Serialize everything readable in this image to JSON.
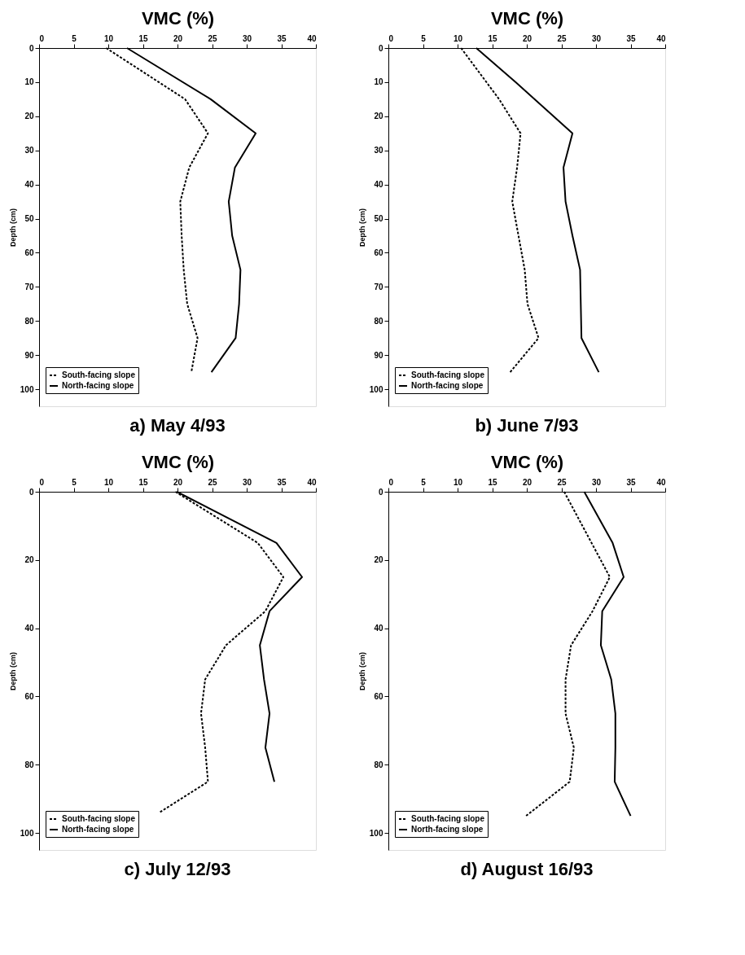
{
  "chart_data": [
    {
      "type": "line",
      "orientation": "horizontal",
      "title": "a) May 4/93",
      "xlabel": "VMC (%)",
      "ylabel": "Depth (cm)",
      "xlim": [
        0,
        40
      ],
      "xticks": [
        0,
        5,
        10,
        15,
        20,
        25,
        30,
        35,
        40
      ],
      "ylim": [
        105,
        0
      ],
      "yticks": [
        0,
        10,
        20,
        30,
        40,
        50,
        60,
        70,
        80,
        90,
        100
      ],
      "grid": false,
      "legend": "bottom left",
      "x": [
        0,
        15,
        25,
        35,
        45,
        55,
        65,
        75,
        85,
        95
      ],
      "series": [
        {
          "name": "South-facing slope",
          "color": "#000000",
          "line_style": "dashed",
          "values": [
            9.7,
            21.1,
            24.4,
            21.7,
            20.4,
            20.6,
            20.9,
            21.4,
            22.9,
            22.0
          ]
        },
        {
          "name": "North-facing slope",
          "color": "#000000",
          "line_style": "solid",
          "values": [
            12.7,
            24.8,
            31.3,
            28.3,
            27.4,
            27.9,
            29.1,
            28.9,
            28.4,
            24.9
          ]
        }
      ]
    },
    {
      "type": "line",
      "orientation": "horizontal",
      "title": "b) June 7/93",
      "xlabel": "VMC (%)",
      "ylabel": "Depth (cm)",
      "xlim": [
        0,
        40
      ],
      "xticks": [
        0,
        5,
        10,
        15,
        20,
        25,
        30,
        35,
        40
      ],
      "ylim": [
        105,
        0
      ],
      "yticks": [
        0,
        10,
        20,
        30,
        40,
        50,
        60,
        70,
        80,
        90,
        100
      ],
      "grid": false,
      "legend": "bottom left",
      "x": [
        0,
        15,
        25,
        35,
        45,
        55,
        65,
        75,
        85,
        95
      ],
      "series": [
        {
          "name": "South-facing slope",
          "color": "#000000",
          "line_style": "dashed",
          "values": [
            10.5,
            16.0,
            19.1,
            18.6,
            17.9,
            18.8,
            19.7,
            20.1,
            21.7,
            17.6
          ]
        },
        {
          "name": "North-facing slope",
          "color": "#000000",
          "line_style": "solid",
          "x": [
            0,
            10,
            25,
            35,
            45,
            55,
            65,
            75,
            85,
            95
          ],
          "values": [
            12.7,
            18.4,
            26.6,
            25.3,
            25.6,
            26.6,
            27.7,
            27.8,
            27.9,
            30.4
          ]
        }
      ]
    },
    {
      "type": "line",
      "orientation": "horizontal",
      "title": "c) July 12/93",
      "xlabel": "VMC (%)",
      "ylabel": "Depth (cm)",
      "xlim": [
        0,
        40
      ],
      "xticks": [
        0,
        5,
        10,
        15,
        20,
        25,
        30,
        35,
        40
      ],
      "ylim": [
        105,
        0
      ],
      "yticks": [
        0,
        20,
        40,
        60,
        80,
        100
      ],
      "grid": false,
      "legend": "bottom left",
      "x": [
        0,
        15,
        25,
        35,
        45,
        55,
        65,
        75,
        85,
        94
      ],
      "series": [
        {
          "name": "South-facing slope",
          "color": "#000000",
          "line_style": "dashed",
          "values": [
            19.7,
            31.6,
            35.3,
            32.7,
            27.0,
            24.0,
            23.4,
            24.0,
            24.4,
            17.4
          ]
        },
        {
          "name": "North-facing slope",
          "color": "#000000",
          "line_style": "solid",
          "x": [
            0,
            15,
            25,
            35,
            45,
            55,
            65,
            75,
            85
          ],
          "values": [
            19.9,
            34.3,
            38.0,
            33.3,
            31.9,
            32.5,
            33.3,
            32.7,
            34.0
          ]
        }
      ]
    },
    {
      "type": "line",
      "orientation": "horizontal",
      "title": "d) August 16/93",
      "xlabel": "VMC (%)",
      "ylabel": "Depth (cm)",
      "xlim": [
        0,
        40
      ],
      "xticks": [
        0,
        5,
        10,
        15,
        20,
        25,
        30,
        35,
        40
      ],
      "ylim": [
        105,
        0
      ],
      "yticks": [
        0,
        20,
        40,
        60,
        80,
        100
      ],
      "grid": false,
      "legend": "bottom left",
      "x": [
        0,
        15,
        25,
        35,
        45,
        55,
        65,
        75,
        85,
        95
      ],
      "series": [
        {
          "name": "South-facing slope",
          "color": "#000000",
          "line_style": "dashed",
          "x": [
            0,
            25,
            35,
            45,
            55,
            65,
            75,
            85,
            95
          ],
          "values": [
            25.4,
            32.0,
            29.5,
            26.4,
            25.6,
            25.6,
            26.8,
            26.2,
            19.9
          ]
        },
        {
          "name": "North-facing slope",
          "color": "#000000",
          "line_style": "solid",
          "values": [
            28.3,
            32.4,
            34.0,
            30.9,
            30.7,
            32.2,
            32.8,
            32.8,
            32.7,
            35.0
          ]
        }
      ]
    }
  ]
}
